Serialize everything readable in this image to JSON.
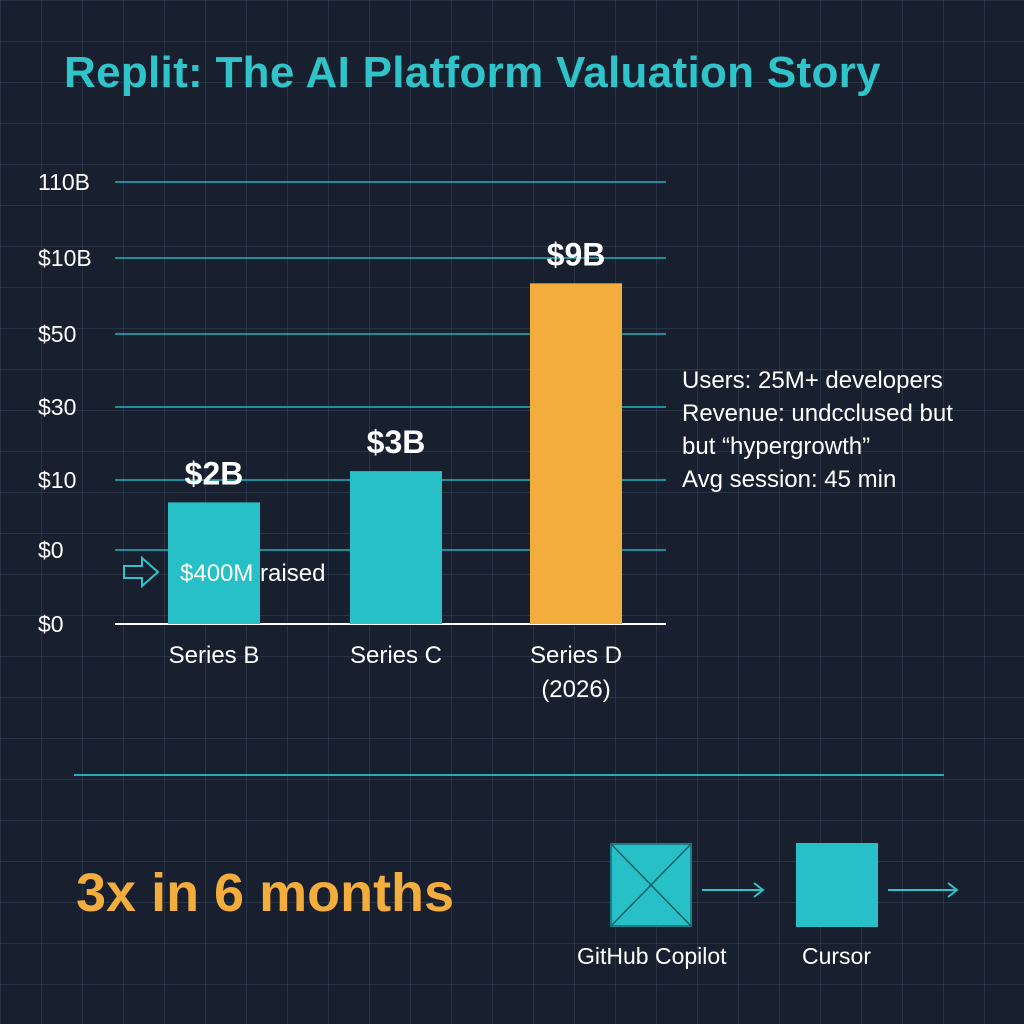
{
  "title": "Replit: The AI Platform Valuation Story",
  "chart_data": {
    "type": "bar",
    "y_tick_labels": [
      "$0",
      "$0",
      "$10",
      "$30",
      "$50",
      "$10B",
      "110B"
    ],
    "categories": [
      [
        "Series B"
      ],
      [
        "Series C"
      ],
      [
        "Series D",
        "(2026)"
      ]
    ],
    "values": [
      2,
      3,
      9
    ],
    "value_unit": "billion USD",
    "data_labels": [
      "$2B",
      "$3B",
      "$9B"
    ],
    "bar_colors": [
      "#26c0c6",
      "#26c0c6",
      "#f2ad3c"
    ],
    "gridline_color": "#22b3bb",
    "annotation": "$400M raised",
    "legend": "none",
    "grid": true
  },
  "stats": [
    "Users: 25M+ developers",
    "Revenue: undcclused but",
    "but “hypergrowth”",
    "Avg session: 45 min"
  ],
  "headline": "3x in 6 months",
  "competitors": [
    {
      "label": "GitHub Copilot",
      "icon": "crossed-box-icon"
    },
    {
      "label": "Cursor",
      "icon": "box-icon"
    }
  ],
  "colors": {
    "accent": "#2ec4c9",
    "highlight": "#f2ad3c",
    "background": "#182030"
  }
}
